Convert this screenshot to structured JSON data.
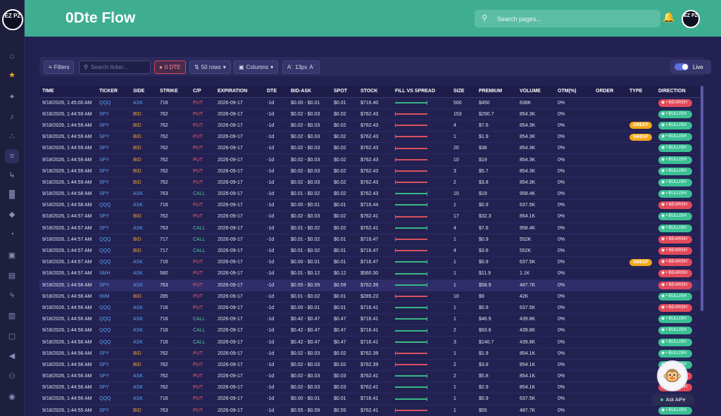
{
  "app": {
    "logo_text": "EZ PZ",
    "page_title": "0Dte Flow"
  },
  "search": {
    "placeholder": "Search pages..."
  },
  "sidebar": {
    "icons": [
      "home-icon",
      "star-icon",
      "sparkle-icon",
      "bell-icon",
      "network-icon",
      "layers-icon",
      "redirect-icon",
      "bar-chart-icon",
      "drop-icon",
      "gauge-icon",
      "briefcase-icon",
      "calendar-icon",
      "bolt-icon",
      "document-icon",
      "folder-icon",
      "megaphone-icon",
      "users-icon",
      "discord-icon"
    ]
  },
  "toolbar": {
    "filters": "Filters",
    "search_placeholder": "Search ticker...",
    "dte": "0 DTE",
    "rows": "50 rows",
    "columns": "Columns",
    "font_size": "13px",
    "live": "Live"
  },
  "table": {
    "columns": [
      "TIME",
      "TICKER",
      "SIDE",
      "STRIKE",
      "C/P",
      "EXPIRATION",
      "DTE",
      "BID-ASK",
      "SPOT",
      "STOCK",
      "FILL VS SPREAD",
      "SIZE",
      "PREMIUM",
      "VOLUME",
      "OTM(%)",
      "ORDER",
      "TYPE",
      "DIRECTION"
    ],
    "rows": [
      [
        "9/18/2026, 1:45:00 AM",
        "QQQ",
        "ASK",
        "716",
        "PUT",
        "2026-09-17",
        "-1d",
        "$0.00 - $0.01",
        "$0.01",
        "$716.40",
        "ask",
        "500",
        "$450",
        "638K",
        "0%",
        "",
        "",
        "BEARISH"
      ],
      [
        "9/18/2026, 1:44:59 AM",
        "SPY",
        "BID",
        "762",
        "PUT",
        "2026-09-17",
        "-1d",
        "$0.02 - $0.03",
        "$0.02",
        "$762.43",
        "bid",
        "153",
        "$290.7",
        "854.3K",
        "0%",
        "",
        "",
        "BULLISH"
      ],
      [
        "9/18/2026, 1:44:59 AM",
        "SPY",
        "BID",
        "762",
        "PUT",
        "2026-09-17",
        "-1d",
        "$0.02 - $0.03",
        "$0.02",
        "$762.43",
        "bid",
        "4",
        "$7.6",
        "854.3K",
        "0%",
        "",
        "SWEEP",
        "BULLISH"
      ],
      [
        "9/18/2026, 1:44:59 AM",
        "SPY",
        "BID",
        "762",
        "PUT",
        "2026-09-17",
        "-1d",
        "$0.02 - $0.03",
        "$0.02",
        "$762.43",
        "bid",
        "1",
        "$1.9",
        "854.3K",
        "0%",
        "",
        "SWEEP",
        "BULLISH"
      ],
      [
        "9/18/2026, 1:44:59 AM",
        "SPY",
        "BID",
        "762",
        "PUT",
        "2026-09-17",
        "-1d",
        "$0.02 - $0.03",
        "$0.02",
        "$762.43",
        "bid",
        "20",
        "$38",
        "854.3K",
        "0%",
        "",
        "",
        "BULLISH"
      ],
      [
        "9/18/2026, 1:44:59 AM",
        "SPY",
        "BID",
        "762",
        "PUT",
        "2026-09-17",
        "-1d",
        "$0.02 - $0.03",
        "$0.02",
        "$762.43",
        "bid",
        "10",
        "$19",
        "854.3K",
        "0%",
        "",
        "",
        "BULLISH"
      ],
      [
        "9/18/2026, 1:44:59 AM",
        "SPY",
        "BID",
        "762",
        "PUT",
        "2026-09-17",
        "-1d",
        "$0.02 - $0.03",
        "$0.02",
        "$762.43",
        "bid",
        "3",
        "$5.7",
        "854.3K",
        "0%",
        "",
        "",
        "BULLISH"
      ],
      [
        "9/18/2026, 1:44:59 AM",
        "SPY",
        "BID",
        "762",
        "PUT",
        "2026-09-17",
        "-1d",
        "$0.02 - $0.03",
        "$0.02",
        "$762.43",
        "bid",
        "2",
        "$3.8",
        "854.3K",
        "0%",
        "",
        "",
        "BULLISH"
      ],
      [
        "9/18/2026, 1:44:58 AM",
        "SPY",
        "ASK",
        "763",
        "CALL",
        "2026-09-17",
        "-1d",
        "$0.01 - $0.02",
        "$0.02",
        "$762.43",
        "ask",
        "10",
        "$19",
        "958.4K",
        "0%",
        "",
        "",
        "BULLISH"
      ],
      [
        "9/18/2026, 1:44:58 AM",
        "QQQ",
        "ASK",
        "716",
        "PUT",
        "2026-09-17",
        "-1d",
        "$0.00 - $0.01",
        "$0.01",
        "$716.44",
        "ask",
        "1",
        "$0.9",
        "637.5K",
        "0%",
        "",
        "",
        "BEARISH"
      ],
      [
        "9/18/2026, 1:44:57 AM",
        "SPY",
        "BID",
        "762",
        "PUT",
        "2026-09-17",
        "-1d",
        "$0.02 - $0.03",
        "$0.02",
        "$762.41",
        "bid",
        "17",
        "$32.3",
        "854.1K",
        "0%",
        "",
        "",
        "BULLISH"
      ],
      [
        "9/18/2026, 1:44:57 AM",
        "SPY",
        "ASK",
        "763",
        "CALL",
        "2026-09-17",
        "-1d",
        "$0.01 - $0.02",
        "$0.02",
        "$762.41",
        "ask",
        "4",
        "$7.6",
        "958.4K",
        "0%",
        "",
        "",
        "BULLISH"
      ],
      [
        "9/18/2026, 1:44:57 AM",
        "QQQ",
        "BID",
        "717",
        "CALL",
        "2026-09-17",
        "-1d",
        "$0.01 - $0.02",
        "$0.01",
        "$716.47",
        "bid",
        "1",
        "$0.9",
        "552K",
        "0%",
        "",
        "",
        "BEARISH"
      ],
      [
        "9/18/2026, 1:44:57 AM",
        "QQQ",
        "BID",
        "717",
        "CALL",
        "2026-09-17",
        "-1d",
        "$0.01 - $0.02",
        "$0.01",
        "$716.47",
        "bid",
        "4",
        "$3.6",
        "552K",
        "0%",
        "",
        "",
        "BEARISH"
      ],
      [
        "9/18/2026, 1:44:57 AM",
        "QQQ",
        "ASK",
        "716",
        "PUT",
        "2026-09-17",
        "-1d",
        "$0.00 - $0.01",
        "$0.01",
        "$716.47",
        "ask",
        "1",
        "$0.9",
        "637.5K",
        "0%",
        "",
        "SWEEP",
        "BEARISH"
      ],
      [
        "9/18/2026, 1:44:57 AM",
        "SMH",
        "ASK",
        "560",
        "PUT",
        "2026-09-17",
        "-1d",
        "$0.01 - $0.12",
        "$0.12",
        "$560.30",
        "ask",
        "1",
        "$11.9",
        "1.1K",
        "0%",
        "",
        "",
        "BEARISH"
      ],
      [
        "9/18/2026, 1:44:56 AM",
        "SPY",
        "ASK",
        "763",
        "PUT",
        "2026-09-17",
        "-1d",
        "$0.55 - $0.59",
        "$0.59",
        "$762.39",
        "ask",
        "1",
        "$58.9",
        "487.7K",
        "0%",
        "",
        "",
        "BEARISH"
      ],
      [
        "9/18/2026, 1:44:56 AM",
        "IWM",
        "BID",
        "285",
        "PUT",
        "2026-09-17",
        "-1d",
        "$0.01 - $0.02",
        "$0.01",
        "$285.23",
        "bid",
        "10",
        "$9",
        "42K",
        "0%",
        "",
        "",
        "BULLISH"
      ],
      [
        "9/18/2026, 1:44:56 AM",
        "QQQ",
        "ASK",
        "716",
        "PUT",
        "2026-09-17",
        "-1d",
        "$0.00 - $0.01",
        "$0.01",
        "$716.41",
        "ask",
        "1",
        "$0.9",
        "637.5K",
        "0%",
        "",
        "",
        "BEARISH"
      ],
      [
        "9/18/2026, 1:44:56 AM",
        "QQQ",
        "ASK",
        "716",
        "CALL",
        "2026-09-17",
        "-1d",
        "$0.42 - $0.47",
        "$0.47",
        "$716.41",
        "ask",
        "1",
        "$46.9",
        "439.8K",
        "0%",
        "",
        "",
        "BULLISH"
      ],
      [
        "9/18/2026, 1:44:56 AM",
        "QQQ",
        "ASK",
        "716",
        "CALL",
        "2026-09-17",
        "-1d",
        "$0.42 - $0.47",
        "$0.47",
        "$716.41",
        "ask",
        "2",
        "$93.8",
        "439.8K",
        "0%",
        "",
        "",
        "BULLISH"
      ],
      [
        "9/18/2026, 1:44:56 AM",
        "QQQ",
        "ASK",
        "716",
        "CALL",
        "2026-09-17",
        "-1d",
        "$0.42 - $0.47",
        "$0.47",
        "$716.41",
        "ask",
        "3",
        "$140.7",
        "439.8K",
        "0%",
        "",
        "",
        "BULLISH"
      ],
      [
        "9/18/2026, 1:44:56 AM",
        "SPY",
        "BID",
        "762",
        "PUT",
        "2026-09-17",
        "-1d",
        "$0.02 - $0.03",
        "$0.02",
        "$762.39",
        "bid",
        "1",
        "$1.9",
        "854.1K",
        "0%",
        "",
        "",
        "BULLISH"
      ],
      [
        "9/18/2026, 1:44:56 AM",
        "SPY",
        "BID",
        "762",
        "PUT",
        "2026-09-17",
        "-1d",
        "$0.02 - $0.03",
        "$0.02",
        "$762.39",
        "bid",
        "2",
        "$3.8",
        "854.1K",
        "0%",
        "",
        "",
        "BULLISH"
      ],
      [
        "9/18/2026, 1:44:56 AM",
        "SPY",
        "ASK",
        "762",
        "PUT",
        "2026-09-17",
        "-1d",
        "$0.02 - $0.03",
        "$0.03",
        "$762.41",
        "ask",
        "2",
        "$5.8",
        "854.1K",
        "0%",
        "",
        "",
        "BEARISH"
      ],
      [
        "9/18/2026, 1:44:56 AM",
        "SPY",
        "ASK",
        "762",
        "PUT",
        "2026-09-17",
        "-1d",
        "$0.02 - $0.03",
        "$0.03",
        "$762.41",
        "ask",
        "1",
        "$2.9",
        "854.1K",
        "0%",
        "",
        "",
        "BEARISH"
      ],
      [
        "9/18/2026, 1:44:56 AM",
        "QQQ",
        "ASK",
        "716",
        "PUT",
        "2026-09-17",
        "-1d",
        "$0.00 - $0.01",
        "$0.01",
        "$716.41",
        "ask",
        "1",
        "$0.9",
        "637.5K",
        "0%",
        "",
        "",
        "BEARISH"
      ],
      [
        "9/18/2026, 1:44:55 AM",
        "SPY",
        "BID",
        "763",
        "PUT",
        "2026-09-17",
        "-1d",
        "$0.55 - $0.59",
        "$0.55",
        "$762.41",
        "bid",
        "1",
        "$55",
        "487.7K",
        "0%",
        "",
        "",
        "BULLISH"
      ]
    ],
    "highlight_row": 16
  },
  "assistant": {
    "label": "Ask AiPe"
  }
}
